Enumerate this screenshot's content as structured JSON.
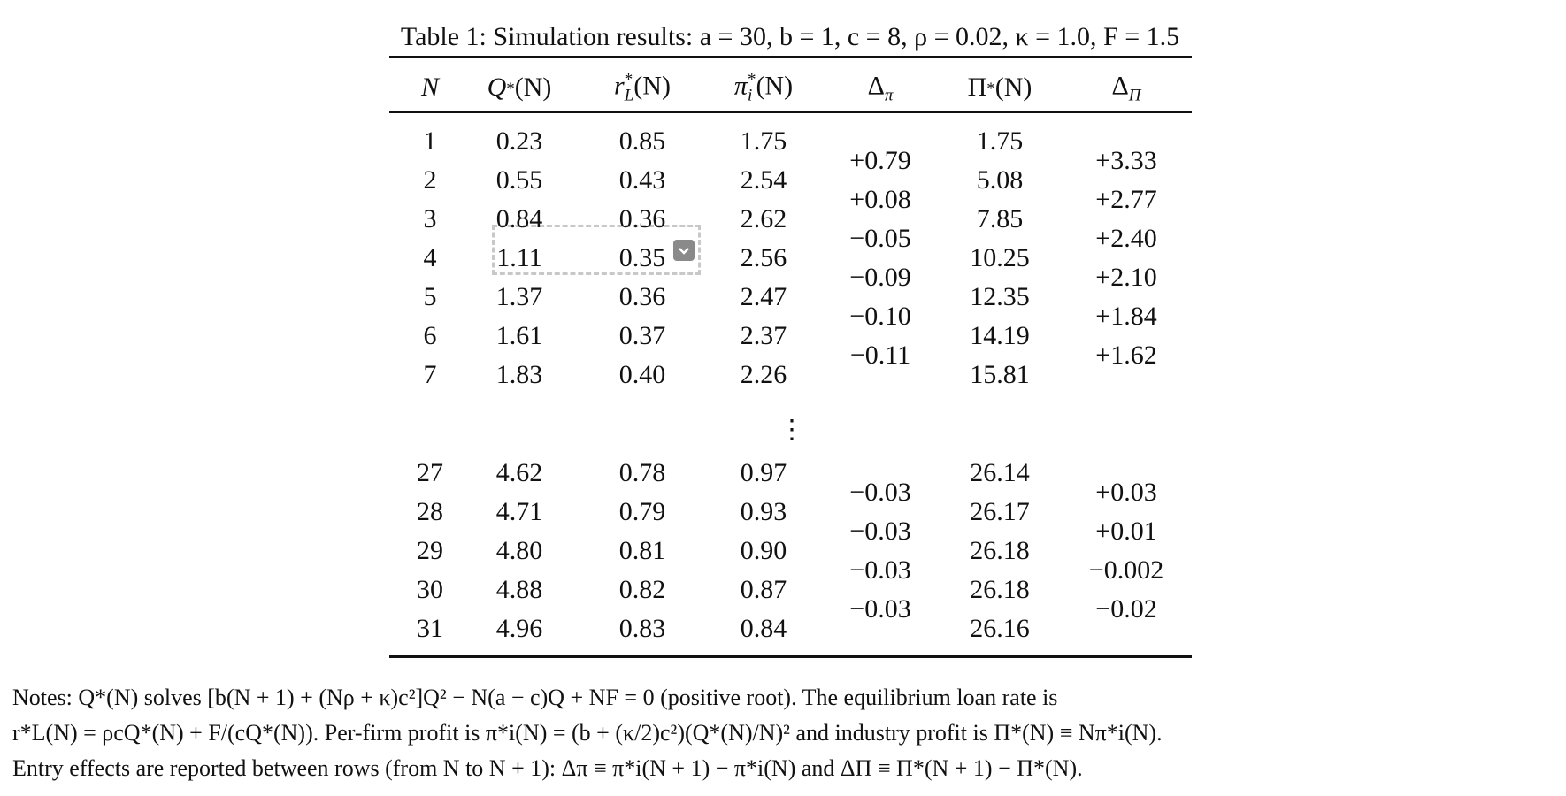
{
  "title": "Table 1: Simulation results: a = 30, b = 1, c = 8, ρ = 0.02, κ = 1.0, F = 1.5",
  "table": {
    "header": [
      {
        "base": "N"
      },
      {
        "base": "Q",
        "sup": "*",
        "arg": "(N)"
      },
      {
        "base": "r",
        "sup": "*",
        "sub": "L",
        "arg": "(N)"
      },
      {
        "base": "π",
        "sup": "*",
        "sub": "i",
        "arg": "(N)"
      },
      {
        "base": "Δ",
        "sub": "π"
      },
      {
        "base": "Π",
        "sup": "*",
        "arg": "(N)"
      },
      {
        "base": "Δ",
        "sub": "Π"
      }
    ],
    "rows_top": [
      [
        "1",
        "0.23",
        "0.85",
        "1.75",
        "1.75"
      ],
      [
        "2",
        "0.55",
        "0.43",
        "2.54",
        "5.08"
      ],
      [
        "3",
        "0.84",
        "0.36",
        "2.62",
        "7.85"
      ],
      [
        "4",
        "1.11",
        "0.35",
        "2.56",
        "10.25"
      ],
      [
        "5",
        "1.37",
        "0.36",
        "2.47",
        "12.35"
      ],
      [
        "6",
        "1.61",
        "0.37",
        "2.37",
        "14.19"
      ],
      [
        "7",
        "1.83",
        "0.40",
        "2.26",
        "15.81"
      ]
    ],
    "deltas_top": [
      [
        "+0.79",
        "+3.33"
      ],
      [
        "+0.08",
        "+2.77"
      ],
      [
        "−0.05",
        "+2.40"
      ],
      [
        "−0.09",
        "+2.10"
      ],
      [
        "−0.10",
        "+1.84"
      ],
      [
        "−0.11",
        "+1.62"
      ]
    ],
    "ellipsis": "⋮",
    "rows_bottom": [
      [
        "27",
        "4.62",
        "0.78",
        "0.97",
        "26.14"
      ],
      [
        "28",
        "4.71",
        "0.79",
        "0.93",
        "26.17"
      ],
      [
        "29",
        "4.80",
        "0.81",
        "0.90",
        "26.18"
      ],
      [
        "30",
        "4.88",
        "0.82",
        "0.87",
        "26.18"
      ],
      [
        "31",
        "4.96",
        "0.83",
        "0.84",
        "26.16"
      ]
    ],
    "deltas_bottom": [
      [
        "−0.03",
        "+0.03"
      ],
      [
        "−0.03",
        "+0.01"
      ],
      [
        "−0.03",
        "−0.002"
      ],
      [
        "−0.03",
        "−0.02"
      ]
    ]
  },
  "notes": [
    "Notes: Q*(N) solves [b(N + 1) + (Nρ + κ)c²]Q² − N(a − c)Q + NF = 0 (positive root). The equilibrium loan rate is",
    "r*L(N) = ρcQ*(N) + F/(cQ*(N)). Per-firm profit is π*i(N) = (b + (κ/2)c²)(Q*(N)/N)² and industry profit is Π*(N) ≡ Nπ*i(N).",
    "Entry effects are reported between rows (from N to N + 1): Δπ ≡ π*i(N + 1) − π*i(N) and ΔΠ ≡ Π*(N + 1) − Π*(N)."
  ]
}
